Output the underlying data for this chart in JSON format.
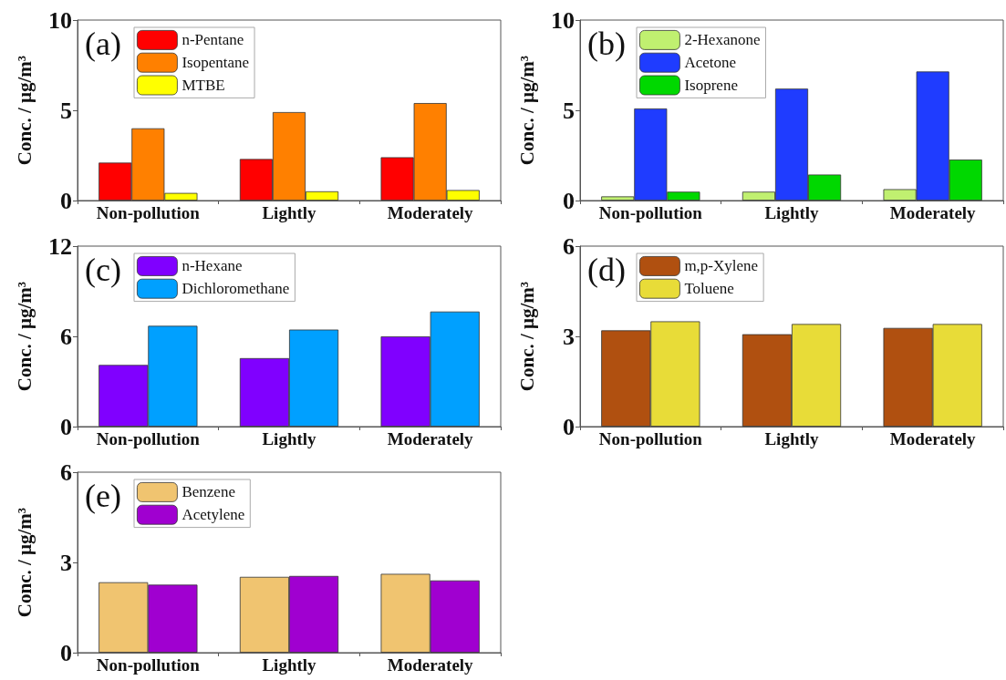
{
  "chart_data": [
    {
      "type": "bar",
      "annotations": [
        "(a)"
      ],
      "ylabel": "Conc. / μg/m³",
      "categories": [
        "Non-pollution",
        "Lightly",
        "Moderately"
      ],
      "ylim": [
        0,
        10
      ],
      "yticks": [
        0,
        5,
        10
      ],
      "legend": "top left",
      "series": [
        {
          "name": "n-Pentane",
          "color": "#ff0000",
          "values": [
            2.1,
            2.3,
            2.4
          ]
        },
        {
          "name": "Isopentane",
          "color": "#ff8000",
          "values": [
            4.0,
            4.9,
            5.4
          ]
        },
        {
          "name": "MTBE",
          "color": "#ffff00",
          "values": [
            0.42,
            0.51,
            0.58
          ]
        }
      ]
    },
    {
      "type": "bar",
      "annotations": [
        "(b)"
      ],
      "ylabel": "Conc. / μg/m³",
      "categories": [
        "Non-pollution",
        "Lightly",
        "Moderately"
      ],
      "ylim": [
        0,
        10
      ],
      "yticks": [
        0,
        5,
        10
      ],
      "legend": "top left",
      "series": [
        {
          "name": "2-Hexanone",
          "color": "#c0f070",
          "values": [
            0.23,
            0.49,
            0.63
          ]
        },
        {
          "name": "Acetone",
          "color": "#1f3cff",
          "values": [
            5.1,
            6.2,
            7.15
          ]
        },
        {
          "name": "Isoprene",
          "color": "#00d800",
          "values": [
            0.49,
            1.44,
            2.27
          ]
        }
      ]
    },
    {
      "type": "bar",
      "annotations": [
        "(c)"
      ],
      "ylabel": "Conc. / μg/m³",
      "categories": [
        "Non-pollution",
        "Lightly",
        "Moderately"
      ],
      "ylim": [
        0,
        12
      ],
      "yticks": [
        0,
        6,
        12
      ],
      "legend": "top left",
      "series": [
        {
          "name": "n-Hexane",
          "color": "#8000ff",
          "values": [
            4.1,
            4.55,
            6.0
          ]
        },
        {
          "name": "Dichloromethane",
          "color": "#00a0ff",
          "values": [
            6.7,
            6.45,
            7.65
          ]
        }
      ]
    },
    {
      "type": "bar",
      "annotations": [
        "(d)"
      ],
      "ylabel": "Conc. / μg/m³",
      "categories": [
        "Non-pollution",
        "Lightly",
        "Moderately"
      ],
      "ylim": [
        0,
        6
      ],
      "yticks": [
        0,
        3,
        6
      ],
      "legend": "top left",
      "series": [
        {
          "name": "m,p-Xylene",
          "color": "#b05010",
          "values": [
            3.2,
            3.07,
            3.28
          ]
        },
        {
          "name": "Toluene",
          "color": "#e8dc38",
          "values": [
            3.5,
            3.41,
            3.41
          ]
        }
      ]
    },
    {
      "type": "bar",
      "annotations": [
        "(e)"
      ],
      "ylabel": "Conc. / μg/m³",
      "categories": [
        "Non-pollution",
        "Lightly",
        "Moderately"
      ],
      "ylim": [
        0,
        6
      ],
      "yticks": [
        0,
        3,
        6
      ],
      "legend": "top left",
      "series": [
        {
          "name": "Benzene",
          "color": "#f0c470",
          "values": [
            2.34,
            2.52,
            2.62
          ]
        },
        {
          "name": "Acetylene",
          "color": "#a000d0",
          "values": [
            2.26,
            2.55,
            2.4
          ]
        }
      ]
    }
  ]
}
